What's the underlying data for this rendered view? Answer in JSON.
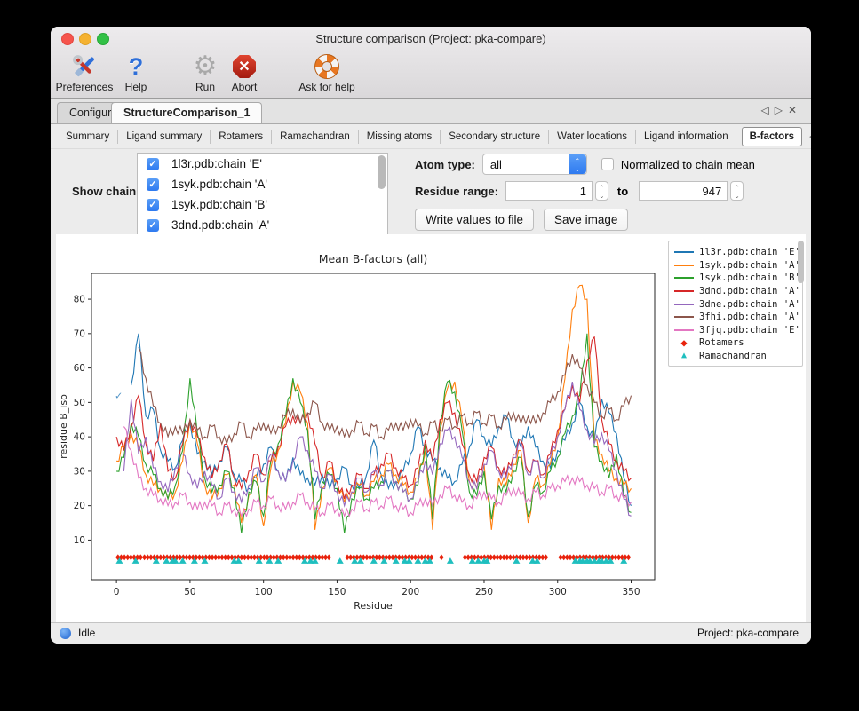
{
  "window": {
    "title": "Structure comparison (Project: pka-compare)"
  },
  "toolbar": {
    "items": [
      {
        "label": "Preferences"
      },
      {
        "label": "Help"
      },
      {
        "label": "Run"
      },
      {
        "label": "Abort"
      },
      {
        "label": "Ask for help"
      }
    ]
  },
  "icons": {
    "back": "◁",
    "forward": "▷",
    "close": "✕",
    "check": "✓",
    "chevrons": "⌃⌄"
  },
  "tabs": {
    "configure": "Configure",
    "current": "StructureComparison_1"
  },
  "subtabs": [
    "Summary",
    "Ligand summary",
    "Rotamers",
    "Ramachandran",
    "Missing atoms",
    "Secondary structure",
    "Water locations",
    "Ligand information",
    "B-factors"
  ],
  "controls": {
    "show_chains_label": "Show chains:",
    "chains": [
      {
        "label": "1l3r.pdb:chain 'E'",
        "checked": true
      },
      {
        "label": "1syk.pdb:chain 'A'",
        "checked": true
      },
      {
        "label": "1syk.pdb:chain 'B'",
        "checked": true
      },
      {
        "label": "3dnd.pdb:chain 'A'",
        "checked": true
      }
    ],
    "atom_type_label": "Atom type:",
    "atom_type_value": "all",
    "normalized_label": "Normalized to chain mean",
    "normalized_checked": false,
    "residue_range_label": "Residue range:",
    "residue_from": "1",
    "to_word": "to",
    "residue_to": "947",
    "write_button": "Write values to file",
    "save_button": "Save image"
  },
  "status": {
    "left": "Idle",
    "right": "Project: pka-compare"
  },
  "chart_data": {
    "type": "line",
    "title": "Mean B-factors (all)",
    "xlabel": "Residue",
    "ylabel": "residue B_iso",
    "xlim": [
      -17,
      366
    ],
    "ylim": [
      -1.5,
      87.5
    ],
    "xticks": [
      0,
      50,
      100,
      150,
      200,
      250,
      300,
      350
    ],
    "yticks": [
      10,
      20,
      30,
      40,
      50,
      60,
      70,
      80
    ],
    "grid": false,
    "legend_position": "outside-right",
    "x_start": 0,
    "x_step": 5,
    "series": [
      {
        "name": "1l3r.pdb:chain 'E'",
        "color": "#1f77b4",
        "values": [
          null,
          null,
          55,
          70,
          46,
          48,
          36,
          33,
          31,
          39,
          44,
          35,
          33,
          29,
          33,
          37,
          29,
          27,
          25,
          28,
          32,
          37,
          30,
          27,
          34,
          29,
          28,
          26,
          29,
          25,
          28,
          31,
          26,
          25,
          29,
          39,
          29,
          25,
          27,
          30,
          35,
          43,
          37,
          33,
          31,
          28,
          27,
          32,
          37,
          45,
          40,
          37,
          43,
          46,
          39,
          37,
          43,
          37,
          33,
          31,
          36,
          39,
          44,
          50,
          43,
          39,
          51,
          47,
          41,
          28,
          20
        ]
      },
      {
        "name": "1syk.pdb:chain 'A'",
        "color": "#ff7f0e",
        "values": [
          33,
          37,
          41,
          37,
          29,
          26,
          25,
          22,
          24,
          33,
          45,
          38,
          26,
          22,
          25,
          29,
          26,
          15,
          23,
          29,
          14,
          31,
          36,
          44,
          56,
          53,
          44,
          13,
          25,
          31,
          27,
          21,
          24,
          26,
          23,
          27,
          29,
          32,
          29,
          26,
          24,
          28,
          36,
          13,
          42,
          54,
          56,
          45,
          27,
          25,
          32,
          13,
          28,
          26,
          32,
          36,
          15,
          28,
          26,
          32,
          40,
          57,
          77,
          84,
          80,
          39,
          35,
          30,
          28,
          26,
          25
        ]
      },
      {
        "name": "1syk.pdb:chain 'B'",
        "color": "#2ca02c",
        "values": [
          30,
          34,
          44,
          40,
          32,
          29,
          25,
          22,
          26,
          36,
          57,
          41,
          28,
          24,
          26,
          30,
          25,
          12,
          24,
          27,
          17,
          33,
          38,
          46,
          57,
          50,
          42,
          16,
          27,
          29,
          25,
          12,
          22,
          25,
          22,
          25,
          27,
          30,
          27,
          24,
          22,
          26,
          38,
          16,
          44,
          56,
          53,
          42,
          24,
          23,
          30,
          16,
          26,
          24,
          30,
          34,
          17,
          26,
          24,
          30,
          34,
          41,
          46,
          52,
          70,
          37,
          33,
          28,
          35,
          23,
          18
        ]
      },
      {
        "name": "3dnd.pdb:chain 'A'",
        "color": "#d62728",
        "values": [
          40,
          36,
          43,
          52,
          38,
          33,
          44,
          30,
          28,
          38,
          45,
          40,
          34,
          28,
          33,
          38,
          28,
          25,
          30,
          35,
          29,
          33,
          37,
          43,
          46,
          44,
          47,
          38,
          28,
          33,
          27,
          22,
          26,
          29,
          25,
          29,
          32,
          35,
          31,
          28,
          26,
          31,
          39,
          33,
          45,
          50,
          47,
          38,
          29,
          27,
          34,
          37,
          31,
          29,
          35,
          39,
          30,
          33,
          29,
          35,
          42,
          48,
          55,
          50,
          62,
          69,
          45,
          38,
          33,
          30,
          28
        ]
      },
      {
        "name": "3dne.pdb:chain 'A'",
        "color": "#9467bd",
        "values": [
          null,
          30,
          51,
          35,
          40,
          31,
          27,
          24,
          31,
          35,
          29,
          25,
          30,
          26,
          22,
          28,
          24,
          21,
          26,
          31,
          27,
          35,
          30,
          27,
          33,
          40,
          36,
          30,
          25,
          29,
          24,
          20,
          24,
          28,
          24,
          30,
          26,
          30,
          27,
          24,
          22,
          27,
          33,
          29,
          38,
          42,
          40,
          34,
          27,
          25,
          32,
          36,
          30,
          28,
          34,
          38,
          29,
          33,
          28,
          34,
          40,
          48,
          56,
          48,
          42,
          38,
          41,
          36,
          30,
          22,
          17
        ]
      },
      {
        "name": "3fhi.pdb:chain 'A'",
        "color": "#8c564b",
        "values": [
          null,
          null,
          null,
          66,
          57,
          49,
          44,
          40,
          43,
          41,
          45,
          42,
          40,
          43,
          40,
          38,
          41,
          44,
          40,
          42,
          44,
          41,
          43,
          46,
          48,
          44,
          47,
          50,
          44,
          42,
          43,
          40,
          42,
          44,
          41,
          43,
          40,
          42,
          44,
          42,
          45,
          43,
          41,
          44,
          42,
          45,
          43,
          46,
          44,
          47,
          44,
          46,
          43,
          45,
          47,
          44,
          46,
          44,
          47,
          50,
          53,
          58,
          64,
          60,
          55,
          50,
          46,
          48,
          45,
          49,
          52
        ]
      },
      {
        "name": "3fjq.pdb:chain 'E'",
        "color": "#e377c2",
        "values": [
          null,
          43,
          36,
          28,
          25,
          23,
          22,
          20,
          21,
          23,
          21,
          19,
          21,
          20,
          18,
          20,
          19,
          17,
          19,
          21,
          20,
          22,
          20,
          19,
          21,
          23,
          21,
          19,
          18,
          20,
          19,
          17,
          19,
          21,
          19,
          21,
          20,
          22,
          20,
          19,
          18,
          20,
          22,
          20,
          23,
          25,
          23,
          21,
          20,
          22,
          24,
          22,
          21,
          23,
          25,
          23,
          22,
          24,
          23,
          25,
          26,
          27,
          28,
          27,
          26,
          25,
          24,
          25,
          23,
          22,
          21
        ]
      }
    ],
    "markers": {
      "rotamers": {
        "label": "Rotamers",
        "color": "#e8220c",
        "y": 5.0,
        "step": 2.2,
        "clusters": [
          [
            1,
            17
          ],
          [
            19,
            146
          ],
          [
            157,
            215
          ],
          [
            221,
            222
          ],
          [
            237,
            294
          ],
          [
            302,
            350
          ]
        ]
      },
      "ramachandran": {
        "label": "Ramachandran",
        "color": "#1fbfbf",
        "y": 4.0,
        "x": [
          2,
          13,
          27,
          34,
          38,
          40,
          45,
          53,
          60,
          80,
          83,
          97,
          104,
          110,
          128,
          132,
          135,
          152,
          162,
          166,
          175,
          182,
          190,
          196,
          199,
          205,
          210,
          213,
          227,
          242,
          246,
          250,
          252,
          272,
          283,
          286,
          312,
          315,
          317,
          320,
          322,
          325,
          328,
          330,
          333,
          336,
          345
        ]
      }
    },
    "annotation_check": {
      "x": 1.5,
      "y": 51,
      "color": "#4f93c6"
    }
  }
}
